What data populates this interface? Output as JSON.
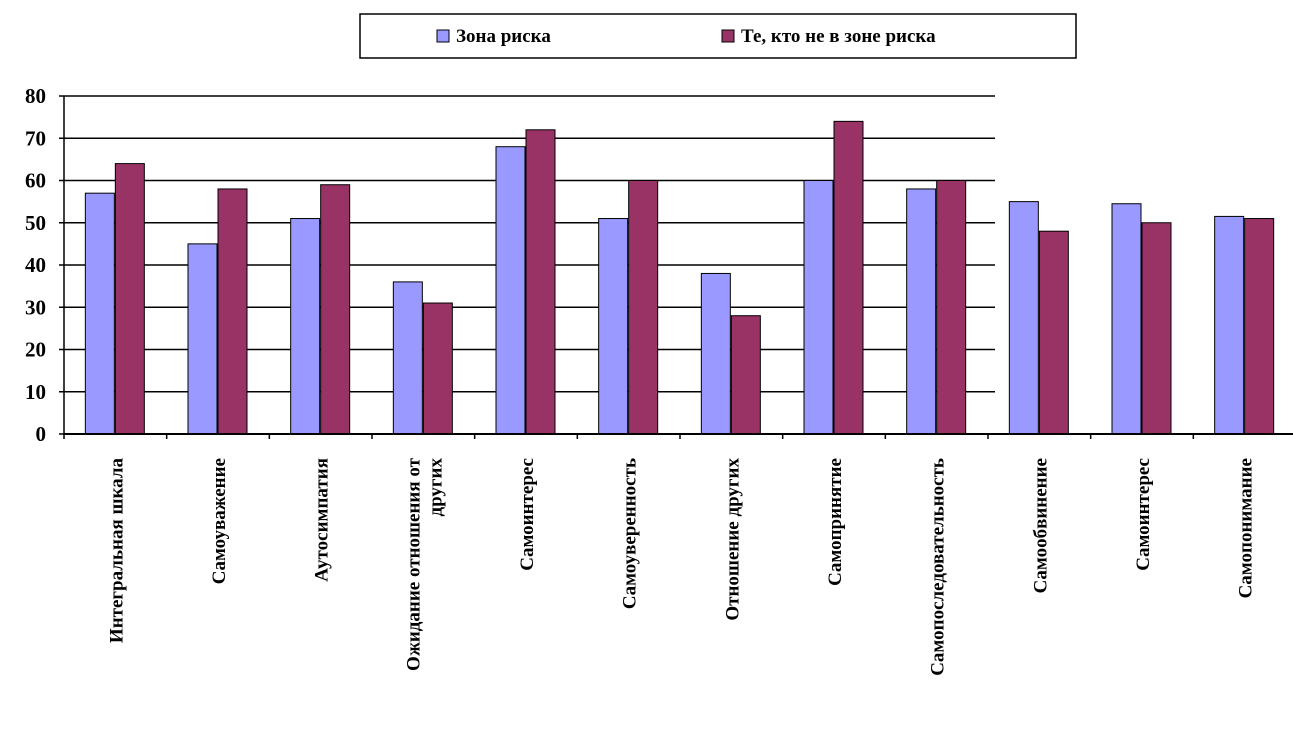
{
  "chart_data": {
    "type": "bar",
    "categories": [
      "Интегральная шкала",
      "Самоуважение",
      "Аутосимпатия",
      "Ожидание отношения от других",
      "Самоинтерес",
      "Самоуверенность",
      "Отношение других",
      "Самопринятие",
      "Самопоследовательность",
      "Самообвинение",
      "Самоинтерес",
      "Самопонимание"
    ],
    "category_lines": [
      [
        "Интегральная шкала"
      ],
      [
        "Самоуважение"
      ],
      [
        "Аутосимпатия"
      ],
      [
        "Ожидание отношения от",
        "других"
      ],
      [
        "Самоинтерес"
      ],
      [
        "Самоуверенность"
      ],
      [
        "Отношение других"
      ],
      [
        "Самопринятие"
      ],
      [
        "Самопоследовательность"
      ],
      [
        "Самообвинение"
      ],
      [
        "Самоинтерес"
      ],
      [
        "Самопонимание"
      ]
    ],
    "series": [
      {
        "name": "Зона риска",
        "color": "#9999ff",
        "values": [
          57,
          45,
          51,
          36,
          68,
          51,
          38,
          60,
          58,
          55,
          54.5,
          51.5
        ]
      },
      {
        "name": "Те, кто не в зоне риска",
        "color": "#993366",
        "values": [
          64,
          58,
          59,
          31,
          72,
          60,
          28,
          74,
          60,
          48,
          50,
          51
        ]
      }
    ],
    "yticks": [
      "0",
      "10",
      "20",
      "30",
      "40",
      "50",
      "60",
      "70",
      "80"
    ],
    "ylim": [
      0,
      80
    ],
    "grid": true,
    "legend_position": "top"
  }
}
